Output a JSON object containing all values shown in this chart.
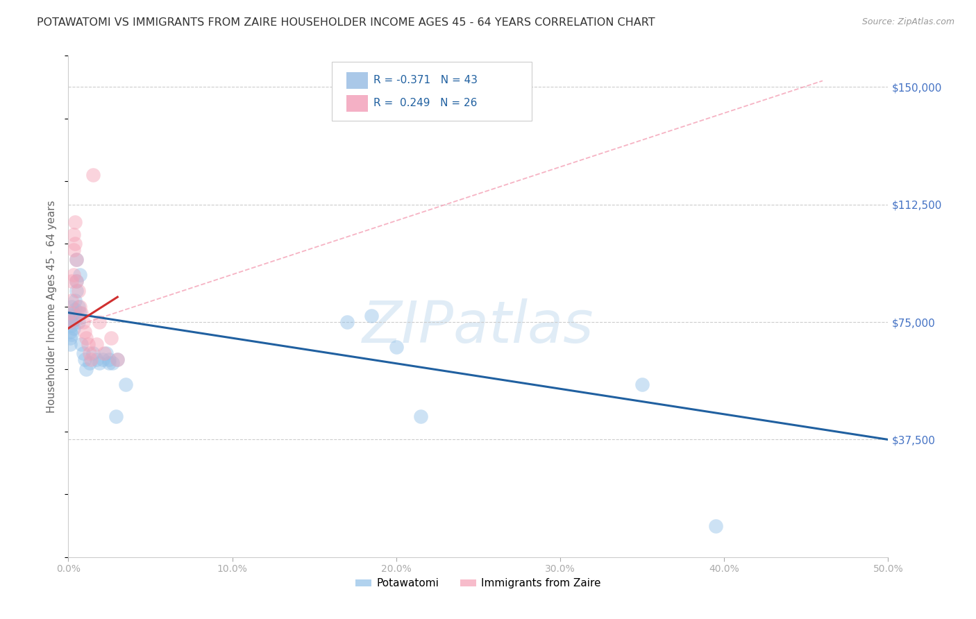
{
  "title": "POTAWATOMI VS IMMIGRANTS FROM ZAIRE HOUSEHOLDER INCOME AGES 45 - 64 YEARS CORRELATION CHART",
  "source": "Source: ZipAtlas.com",
  "ylabel": "Householder Income Ages 45 - 64 years",
  "legend_label1": "Potawatomi",
  "legend_label2": "Immigrants from Zaire",
  "xlim": [
    0.0,
    0.5
  ],
  "ylim": [
    0,
    160000
  ],
  "yticks": [
    37500,
    75000,
    112500,
    150000
  ],
  "ytick_labels": [
    "$37,500",
    "$75,000",
    "$112,500",
    "$150,000"
  ],
  "xticks": [
    0.0,
    0.1,
    0.2,
    0.3,
    0.4,
    0.5
  ],
  "xtick_labels": [
    "0.0%",
    "10.0%",
    "20.0%",
    "30.0%",
    "40.0%",
    "50.0%"
  ],
  "color_potawatomi": "#91C0E8",
  "color_zaire": "#F4A0B5",
  "color_line_potawatomi": "#2060A0",
  "color_line_zaire": "#D03030",
  "color_dashed_line": "#F4A0B5",
  "watermark_text": "ZIPatlas",
  "potawatomi_x": [
    0.001,
    0.001,
    0.001,
    0.001,
    0.002,
    0.002,
    0.002,
    0.002,
    0.003,
    0.003,
    0.003,
    0.004,
    0.004,
    0.004,
    0.005,
    0.005,
    0.005,
    0.006,
    0.006,
    0.007,
    0.007,
    0.008,
    0.009,
    0.01,
    0.011,
    0.013,
    0.015,
    0.017,
    0.019,
    0.021,
    0.023,
    0.025,
    0.03,
    0.035,
    0.17,
    0.185,
    0.2,
    0.215,
    0.35,
    0.395,
    0.025,
    0.027,
    0.029
  ],
  "potawatomi_y": [
    75000,
    72000,
    70000,
    68000,
    80000,
    77000,
    74000,
    71000,
    78000,
    76000,
    73000,
    82000,
    79000,
    76000,
    85000,
    95000,
    88000,
    80000,
    75000,
    90000,
    78000,
    68000,
    65000,
    63000,
    60000,
    62000,
    65000,
    63000,
    62000,
    63000,
    65000,
    62000,
    63000,
    55000,
    75000,
    77000,
    67000,
    45000,
    55000,
    10000,
    63000,
    62000,
    45000
  ],
  "zaire_x": [
    0.001,
    0.001,
    0.002,
    0.002,
    0.003,
    0.003,
    0.003,
    0.004,
    0.004,
    0.005,
    0.005,
    0.006,
    0.007,
    0.008,
    0.009,
    0.01,
    0.011,
    0.012,
    0.013,
    0.014,
    0.015,
    0.017,
    0.019,
    0.022,
    0.026,
    0.03
  ],
  "zaire_y": [
    78000,
    75000,
    88000,
    82000,
    103000,
    98000,
    90000,
    107000,
    100000,
    95000,
    88000,
    85000,
    80000,
    78000,
    75000,
    72000,
    70000,
    68000,
    65000,
    63000,
    122000,
    68000,
    75000,
    65000,
    70000,
    63000
  ],
  "blue_line_x0": 0.0,
  "blue_line_y0": 78000,
  "blue_line_x1": 0.5,
  "blue_line_y1": 37500,
  "red_line_x0": 0.0,
  "red_line_y0": 73000,
  "red_line_x1": 0.03,
  "red_line_y1": 83000,
  "dashed_line_x0": 0.0,
  "dashed_line_y0": 73000,
  "dashed_line_x1": 0.46,
  "dashed_line_y1": 152000
}
